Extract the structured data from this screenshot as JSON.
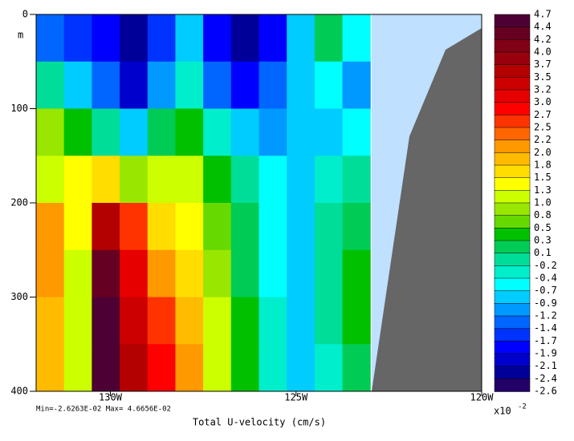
{
  "chart_data": {
    "type": "contour",
    "title": "Total U-velocity (cm/s)",
    "subtitle": "Min=-2.6263E-02  Max= 4.6656E-02",
    "ylabel": "m",
    "xlim": [
      -132,
      -120
    ],
    "xticks": [
      {
        "value": -130,
        "label": "130W"
      },
      {
        "value": -125,
        "label": "125W"
      },
      {
        "value": -120,
        "label": "120W"
      }
    ],
    "ylim": [
      0,
      400
    ],
    "yticks": [
      0,
      100,
      200,
      300,
      400
    ],
    "x_edges": [
      -132,
      -131.25,
      -130.5,
      -129.75,
      -129,
      -128.25,
      -127.5,
      -126.75,
      -126,
      -125.25,
      -124.5,
      -123.75,
      -123
    ],
    "y_edges": [
      0,
      50,
      100,
      150,
      200,
      250,
      300,
      350,
      400
    ],
    "z": [
      [
        -1.4,
        -1.7,
        -1.9,
        -2.4,
        -1.7,
        -0.9,
        -1.9,
        -2.4,
        -1.9,
        -0.9,
        0.1,
        -0.7
      ],
      [
        -0.2,
        -0.9,
        -1.4,
        -2.1,
        -1.2,
        -0.4,
        -1.4,
        -1.9,
        -1.4,
        -0.9,
        -0.7,
        -1.2
      ],
      [
        0.8,
        0.3,
        -0.2,
        -0.9,
        0.1,
        0.3,
        -0.4,
        -0.9,
        -1.2,
        -0.9,
        -0.9,
        -0.7
      ],
      [
        1.0,
        1.3,
        1.5,
        0.8,
        1.0,
        1.0,
        0.3,
        -0.2,
        -0.7,
        -0.9,
        -0.4,
        -0.2
      ],
      [
        2.0,
        1.3,
        3.5,
        2.5,
        1.5,
        1.3,
        0.5,
        0.1,
        -0.7,
        -0.9,
        -0.2,
        0.1
      ],
      [
        2.0,
        1.0,
        4.2,
        3.0,
        2.0,
        1.5,
        0.8,
        0.1,
        -0.7,
        -0.9,
        -0.2,
        0.3
      ],
      [
        1.8,
        1.0,
        4.4,
        3.2,
        2.5,
        1.8,
        1.0,
        0.3,
        -0.4,
        -0.9,
        -0.2,
        0.3
      ],
      [
        1.8,
        1.0,
        4.7,
        3.5,
        2.7,
        2.0,
        1.0,
        0.3,
        -0.4,
        -0.9,
        -0.4,
        0.1
      ]
    ],
    "colorbar": {
      "scale_label": "x10",
      "scale_exponent": "-2",
      "levels": [
        4.7,
        4.4,
        4.2,
        {
          "value": 4,
          "label": "4.0"
        },
        3.7,
        3.5,
        3.2,
        {
          "value": 3,
          "label": "3.0"
        },
        2.7,
        2.5,
        2.2,
        {
          "value": 2,
          "label": "2.0"
        },
        1.8,
        1.5,
        1.3,
        {
          "value": 1,
          "label": "1.0"
        },
        0.8,
        0.5,
        0.3,
        0.1,
        -0.2,
        -0.4,
        -0.7,
        -0.9,
        -1.2,
        -1.4,
        -1.7,
        -1.9,
        -2.1,
        -2.4,
        -2.6
      ],
      "colors": [
        "#4d0033",
        "#660022",
        "#800016",
        "#99000d",
        "#b30000",
        "#cc0000",
        "#e60000",
        "#ff0000",
        "#ff3300",
        "#ff6600",
        "#ff9900",
        "#ffbb00",
        "#ffdd00",
        "#ffff00",
        "#ccff00",
        "#99e600",
        "#66d900",
        "#00c000",
        "#00cc55",
        "#00dd99",
        "#00eecc",
        "#00ffff",
        "#00ccff",
        "#0099ff",
        "#0066ff",
        "#0033ff",
        "#0000ff",
        "#0000cc",
        "#000099",
        "#220066"
      ]
    }
  }
}
